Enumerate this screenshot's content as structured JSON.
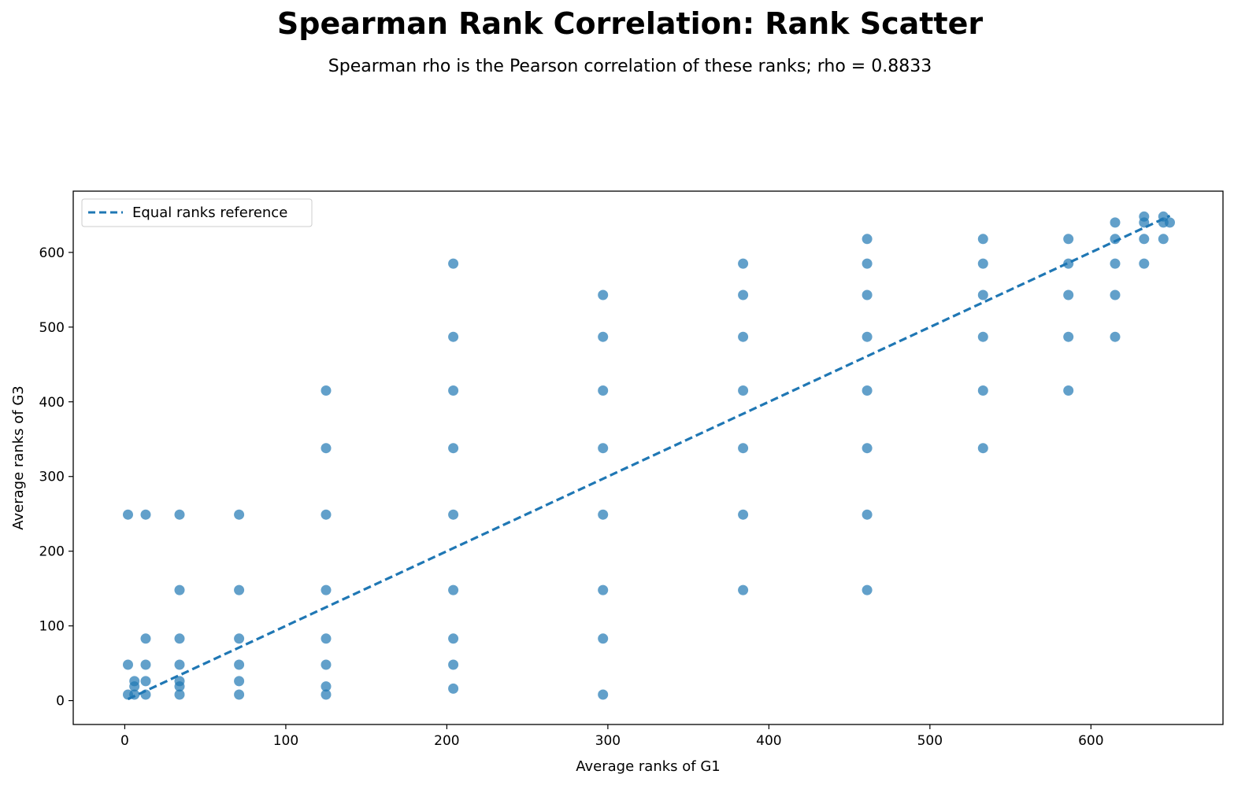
{
  "title": "Spearman Rank Correlation: Rank Scatter",
  "subtitle": "Spearman rho is the Pearson correlation of these ranks; rho = 0.8833",
  "chart_data": {
    "type": "scatter",
    "xlabel": "Average ranks of G1",
    "ylabel": "Average ranks of G3",
    "xlim": [
      -32,
      682
    ],
    "ylim": [
      -32,
      682
    ],
    "xticks": [
      0,
      100,
      200,
      300,
      400,
      500,
      600
    ],
    "yticks": [
      0,
      100,
      200,
      300,
      400,
      500,
      600
    ],
    "grid": false,
    "legend_position": "top-left",
    "point_color": "#1f77b4",
    "points": [
      [
        2,
        249
      ],
      [
        2,
        48
      ],
      [
        2,
        8
      ],
      [
        6,
        8
      ],
      [
        6,
        19
      ],
      [
        6,
        26
      ],
      [
        13,
        249
      ],
      [
        13,
        83
      ],
      [
        13,
        48
      ],
      [
        13,
        26
      ],
      [
        13,
        8
      ],
      [
        34,
        249
      ],
      [
        34,
        148
      ],
      [
        34,
        83
      ],
      [
        34,
        48
      ],
      [
        34,
        26
      ],
      [
        34,
        19
      ],
      [
        34,
        8
      ],
      [
        71,
        249
      ],
      [
        71,
        148
      ],
      [
        71,
        83
      ],
      [
        71,
        48
      ],
      [
        71,
        26
      ],
      [
        71,
        8
      ],
      [
        125,
        415
      ],
      [
        125,
        338
      ],
      [
        125,
        249
      ],
      [
        125,
        148
      ],
      [
        125,
        83
      ],
      [
        125,
        48
      ],
      [
        125,
        19
      ],
      [
        125,
        8
      ],
      [
        204,
        585
      ],
      [
        204,
        487
      ],
      [
        204,
        415
      ],
      [
        204,
        338
      ],
      [
        204,
        249
      ],
      [
        204,
        148
      ],
      [
        204,
        83
      ],
      [
        204,
        48
      ],
      [
        204,
        16
      ],
      [
        297,
        543
      ],
      [
        297,
        487
      ],
      [
        297,
        415
      ],
      [
        297,
        338
      ],
      [
        297,
        249
      ],
      [
        297,
        148
      ],
      [
        297,
        83
      ],
      [
        297,
        8
      ],
      [
        384,
        585
      ],
      [
        384,
        543
      ],
      [
        384,
        487
      ],
      [
        384,
        415
      ],
      [
        384,
        338
      ],
      [
        384,
        249
      ],
      [
        384,
        148
      ],
      [
        461,
        618
      ],
      [
        461,
        585
      ],
      [
        461,
        543
      ],
      [
        461,
        487
      ],
      [
        461,
        415
      ],
      [
        461,
        338
      ],
      [
        461,
        249
      ],
      [
        461,
        148
      ],
      [
        533,
        618
      ],
      [
        533,
        585
      ],
      [
        533,
        543
      ],
      [
        533,
        487
      ],
      [
        533,
        415
      ],
      [
        533,
        338
      ],
      [
        586,
        618
      ],
      [
        586,
        585
      ],
      [
        586,
        543
      ],
      [
        586,
        487
      ],
      [
        586,
        415
      ],
      [
        615,
        640
      ],
      [
        615,
        618
      ],
      [
        615,
        585
      ],
      [
        615,
        543
      ],
      [
        615,
        487
      ],
      [
        633,
        648
      ],
      [
        633,
        640
      ],
      [
        633,
        618
      ],
      [
        633,
        585
      ],
      [
        645,
        648
      ],
      [
        645,
        640
      ],
      [
        645,
        618
      ],
      [
        649,
        640
      ]
    ],
    "series": [
      {
        "name": "Equal ranks reference",
        "type": "line",
        "style": "dashed",
        "color": "#1f77b4",
        "x": [
          2,
          649
        ],
        "y": [
          2,
          649
        ]
      }
    ]
  }
}
